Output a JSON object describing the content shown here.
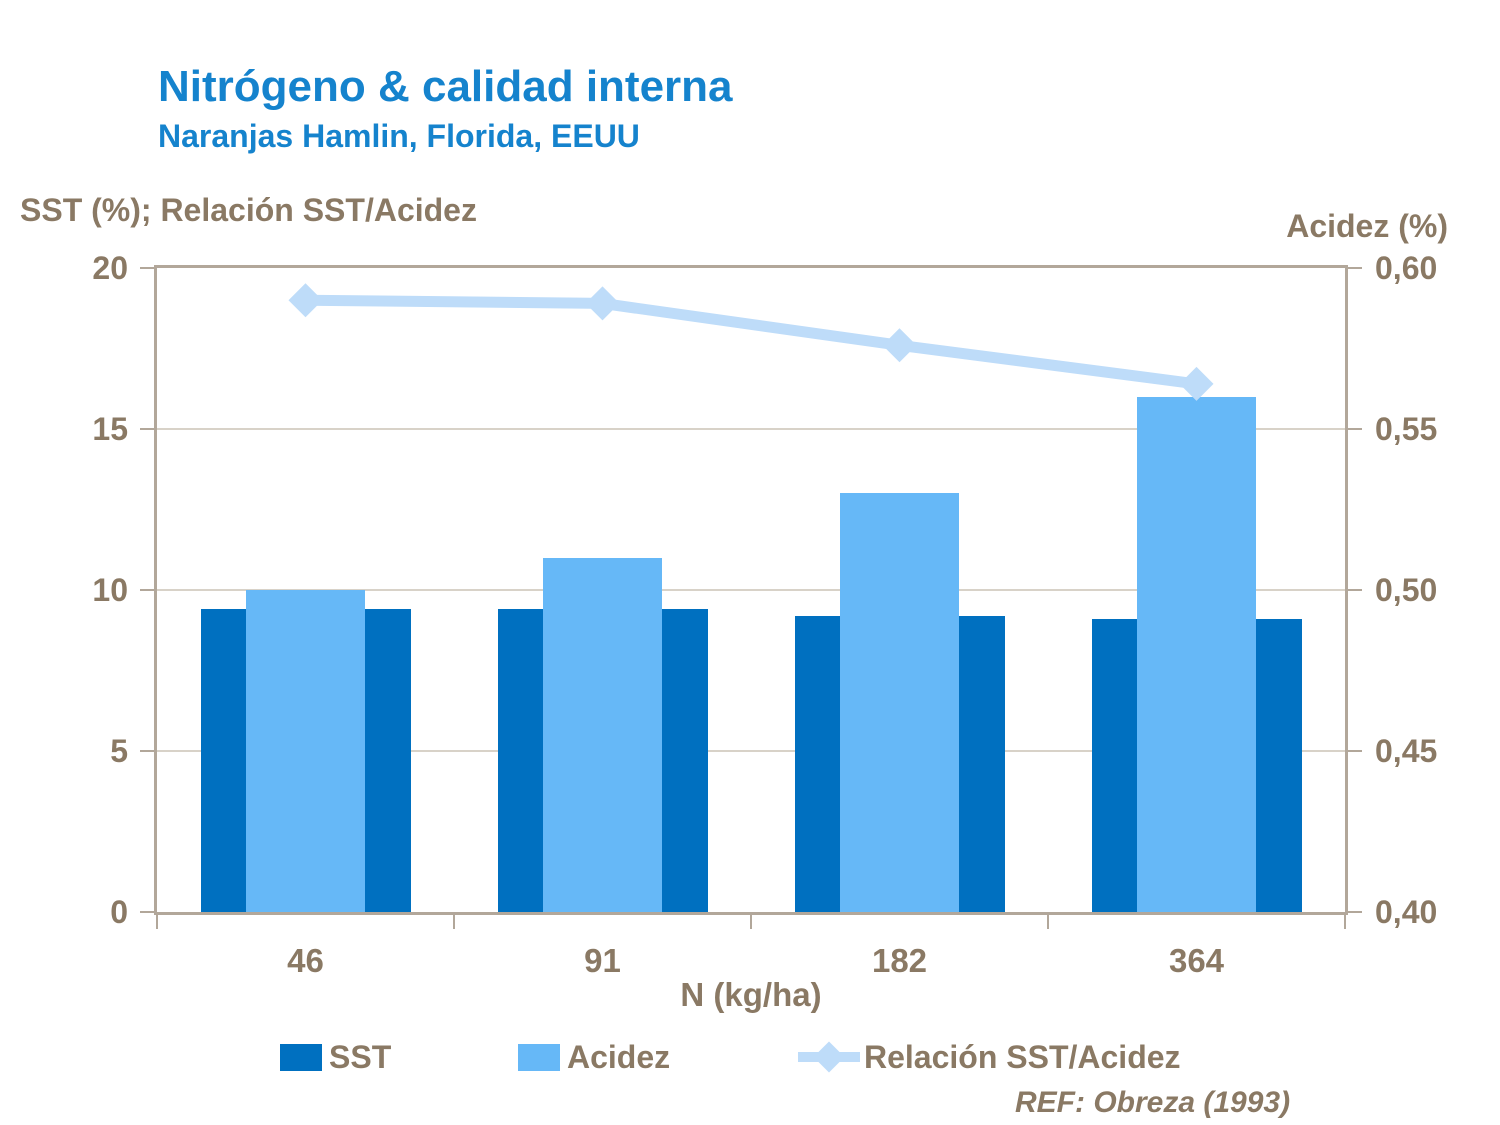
{
  "colors": {
    "title": "#1583cd",
    "text": "#8a7964",
    "axis_line": "#b2a79a",
    "gridline": "#d8d2c8",
    "sst_bar": "#0070c0",
    "acidez_bar": "#66b8f7",
    "ratio_line": "#bedcf9"
  },
  "footer": {
    "ref": "REF: Obreza (1993)"
  },
  "chart_data": {
    "type": "bar",
    "subtype": "combo-bar-line-dual-axis",
    "title": "Nitrógeno & calidad interna",
    "subtitle": "Naranjas Hamlin, Florida, EEUU",
    "categories": [
      "46",
      "91",
      "182",
      "364"
    ],
    "x_axis_title": "N (kg/ha)",
    "left_axis": {
      "title": "SST (%); Relación SST/Acidez",
      "min": 0,
      "max": 20,
      "tick_labels": [
        "0",
        "5",
        "10",
        "15",
        "20"
      ]
    },
    "right_axis": {
      "title": "Acidez (%)",
      "min": 0.4,
      "max": 0.6,
      "tick_labels": [
        "0,40",
        "0,45",
        "0,50",
        "0,55",
        "0,60"
      ]
    },
    "series": [
      {
        "name": "SST",
        "type": "bar",
        "axis": "left",
        "color": "#0070c0",
        "values": [
          9.4,
          9.4,
          9.2,
          9.1
        ]
      },
      {
        "name": "Acidez",
        "type": "bar",
        "axis": "right",
        "color": "#66b8f7",
        "values": [
          0.5,
          0.51,
          0.53,
          0.56
        ]
      },
      {
        "name": "Relación SST/Acidez",
        "type": "line",
        "axis": "left",
        "marker": "diamond",
        "color": "#bedcf9",
        "values": [
          19.0,
          18.9,
          17.6,
          16.4
        ]
      }
    ],
    "grid": "horizontal",
    "legend_position": "bottom"
  }
}
